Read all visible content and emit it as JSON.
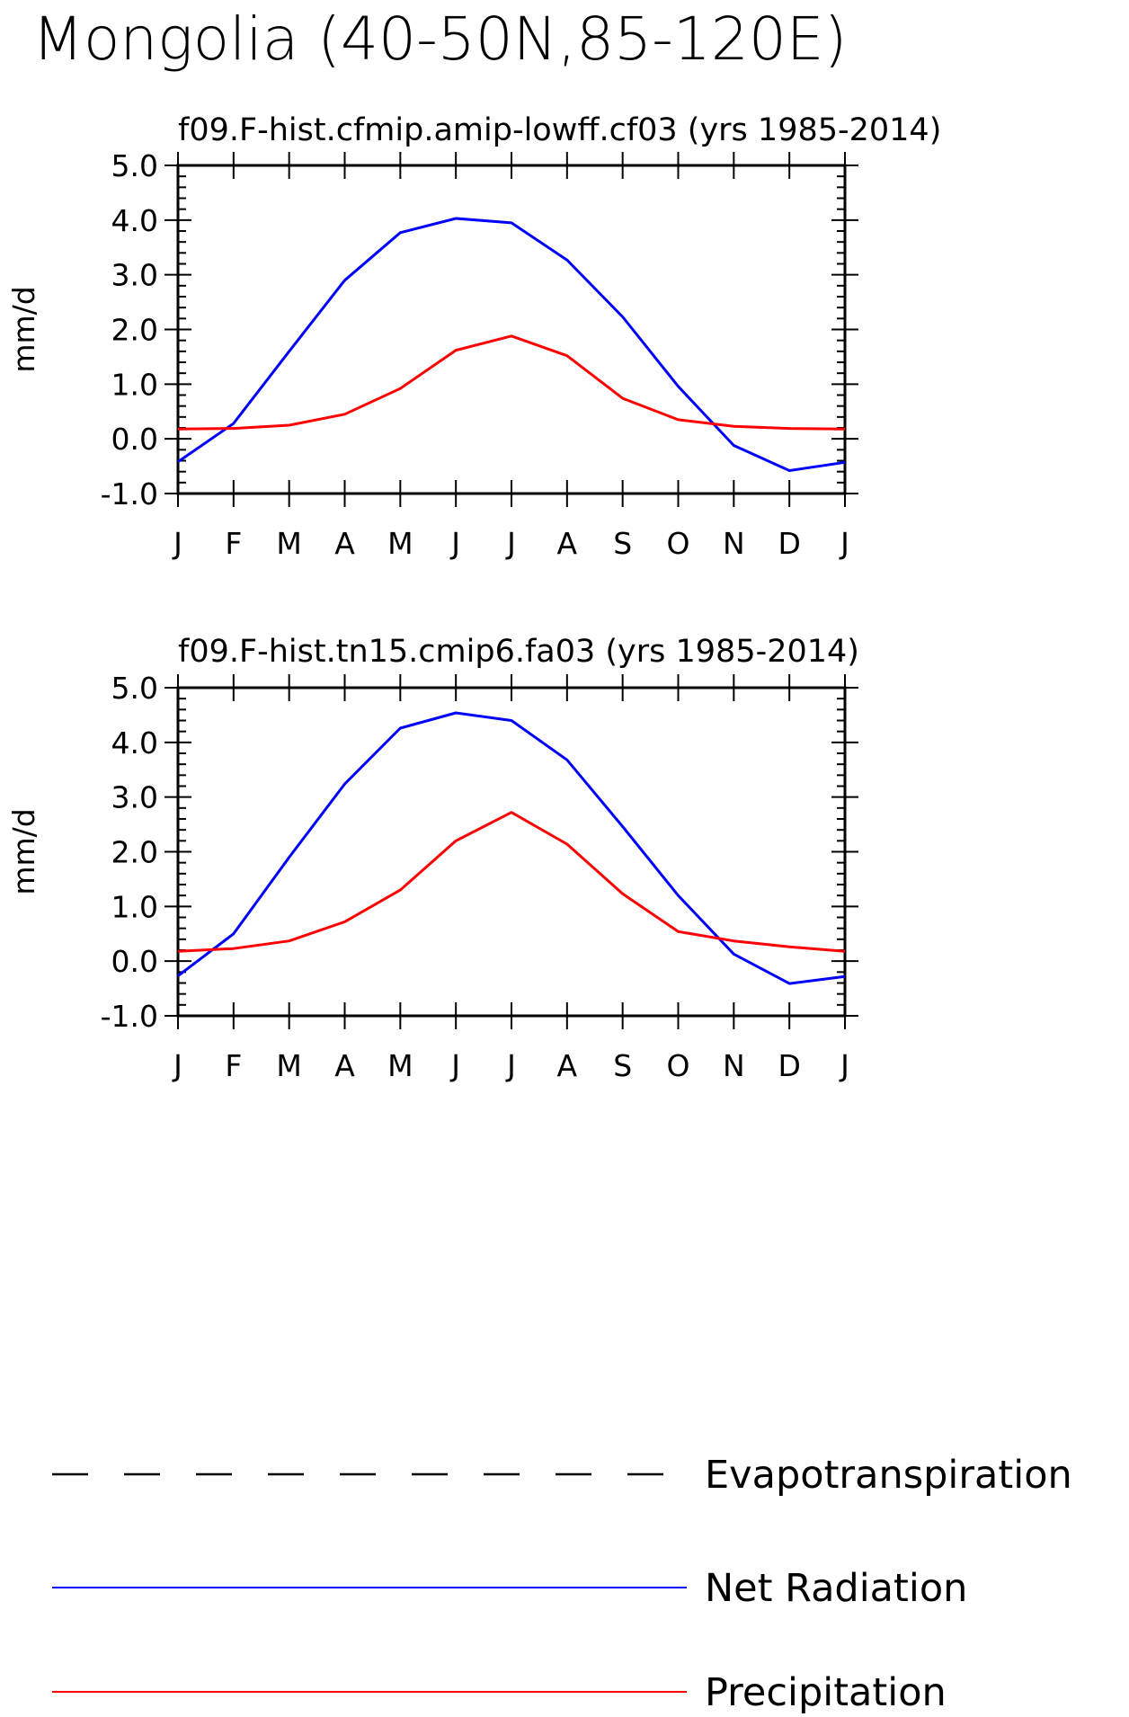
{
  "title": "Mongolia (40-50N,85-120E)",
  "colors": {
    "Net Radiation": "#0000ff",
    "Precipitation": "#ff0000",
    "Evapotranspiration": "#000000"
  },
  "legend": [
    {
      "name": "Evapotranspiration",
      "style": "dashed",
      "color": "#000000"
    },
    {
      "name": "Net Radiation",
      "style": "solid",
      "color": "#0000ff"
    },
    {
      "name": "Precipitation",
      "style": "solid",
      "color": "#ff0000"
    }
  ],
  "chart_data": [
    {
      "type": "line",
      "title": "f09.F-hist.cfmip.amip-lowff.cf03 (yrs 1985-2014)",
      "xlabel": "",
      "ylabel": "mm/d",
      "categories": [
        "J",
        "F",
        "M",
        "A",
        "M",
        "J",
        "J",
        "A",
        "S",
        "O",
        "N",
        "D",
        "J"
      ],
      "ylim": [
        -1.0,
        5.0
      ],
      "yticks": [
        "5.0",
        "4.0",
        "3.0",
        "2.0",
        "1.0",
        "0.0",
        "-1.0"
      ],
      "grid": false,
      "series": [
        {
          "name": "Net Radiation",
          "values": [
            -0.42,
            0.28,
            1.6,
            2.9,
            3.77,
            4.03,
            3.95,
            3.27,
            2.23,
            0.96,
            -0.12,
            -0.58,
            -0.43
          ]
        },
        {
          "name": "Precipitation",
          "values": [
            0.18,
            0.19,
            0.25,
            0.45,
            0.92,
            1.62,
            1.88,
            1.52,
            0.74,
            0.35,
            0.23,
            0.19,
            0.18
          ]
        }
      ]
    },
    {
      "type": "line",
      "title": "f09.F-hist.tn15.cmip6.fa03 (yrs 1985-2014)",
      "xlabel": "",
      "ylabel": "mm/d",
      "categories": [
        "J",
        "F",
        "M",
        "A",
        "M",
        "J",
        "J",
        "A",
        "S",
        "O",
        "N",
        "D",
        "J"
      ],
      "ylim": [
        -1.0,
        5.0
      ],
      "yticks": [
        "5.0",
        "4.0",
        "3.0",
        "2.0",
        "1.0",
        "0.0",
        "-1.0"
      ],
      "grid": false,
      "series": [
        {
          "name": "Net Radiation",
          "values": [
            -0.27,
            0.5,
            1.9,
            3.24,
            4.26,
            4.54,
            4.4,
            3.68,
            2.46,
            1.2,
            0.13,
            -0.41,
            -0.28
          ]
        },
        {
          "name": "Precipitation",
          "values": [
            0.18,
            0.23,
            0.37,
            0.72,
            1.3,
            2.2,
            2.72,
            2.14,
            1.23,
            0.54,
            0.37,
            0.26,
            0.18
          ]
        }
      ]
    }
  ]
}
